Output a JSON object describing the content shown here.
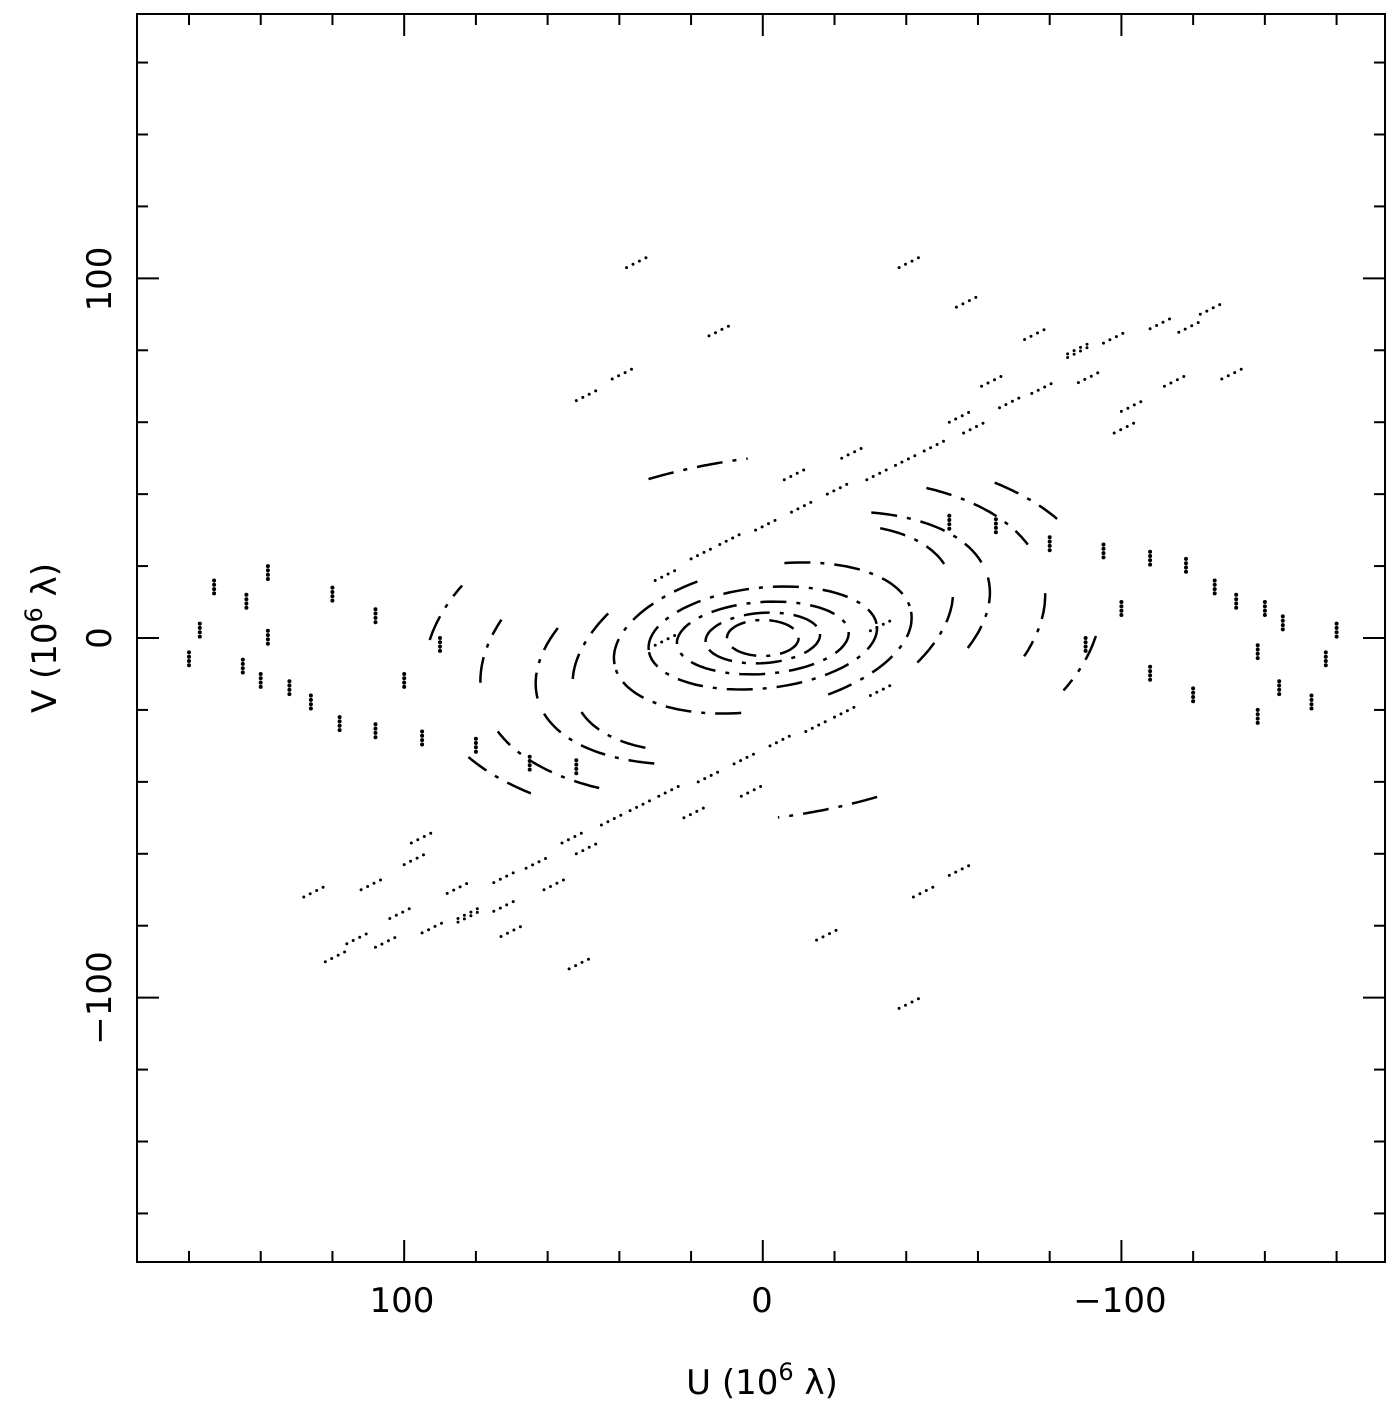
{
  "chart_data": {
    "type": "scatter",
    "title": "",
    "x_axis": {
      "label": {
        "name": "U",
        "exponent": "6",
        "unit": "λ"
      },
      "range": [
        174.5,
        -173.5
      ],
      "reversed": true,
      "major_ticks": [
        100,
        0,
        -100
      ],
      "tick_labels": [
        "100",
        "0",
        "−100"
      ],
      "minor_tick_step": 20
    },
    "y_axis": {
      "label": {
        "name": "V",
        "exponent": "6",
        "unit": "λ"
      },
      "range": [
        -173.5,
        173.5
      ],
      "major_ticks": [
        100,
        0,
        -100
      ],
      "tick_labels": [
        "100",
        "0",
        "−100"
      ],
      "minor_tick_step": 20
    },
    "grid": false,
    "legend": "none",
    "marker_color": "#000000",
    "series": [
      {
        "kind": "ellipse_tracks",
        "center": [
          0,
          0
        ],
        "tracks": [
          {
            "a": 95,
            "b": 50,
            "tilt_deg": -8,
            "arcs": [
              [
                0.25,
                0.55
              ],
              [
                1.3,
                1.6
              ],
              [
                2.4,
                2.7
              ]
            ]
          },
          {
            "a": 80,
            "b": 42,
            "tilt_deg": -12,
            "arcs": [
              [
                0.1,
                0.5
              ],
              [
                2.3,
                2.9
              ]
            ]
          },
          {
            "a": 65,
            "b": 32,
            "tilt_deg": -15,
            "arcs": [
              [
                0.0,
                0.6
              ],
              [
                2.2,
                3.0
              ]
            ]
          },
          {
            "a": 55,
            "b": 28,
            "tilt_deg": -18,
            "arcs": [
              [
                0.2,
                0.8
              ],
              [
                2.4,
                3.0
              ]
            ]
          },
          {
            "a": 42,
            "b": 20,
            "tilt_deg": -10,
            "arcs": [
              [
                0.0,
                1.2
              ],
              [
                1.8,
                3.1
              ]
            ]
          },
          {
            "a": 32,
            "b": 14,
            "tilt_deg": -6,
            "arcs": [
              [
                0.0,
                3.1
              ]
            ]
          },
          {
            "a": 24,
            "b": 10,
            "tilt_deg": -4,
            "arcs": [
              [
                0.0,
                3.1
              ]
            ]
          },
          {
            "a": 16,
            "b": 7,
            "tilt_deg": -4,
            "arcs": [
              [
                0.0,
                3.1
              ]
            ]
          },
          {
            "a": 10,
            "b": 5,
            "tilt_deg": 0,
            "arcs": [
              [
                0.0,
                3.1
              ]
            ]
          }
        ]
      },
      {
        "kind": "streak_clusters",
        "points": [
          [
            -38,
            103
          ],
          [
            -54,
            92
          ],
          [
            -73,
            83
          ],
          [
            -85,
            79
          ],
          [
            -88,
            71
          ],
          [
            -75,
            68
          ],
          [
            -66,
            64
          ],
          [
            -56,
            57
          ],
          [
            -45,
            52
          ],
          [
            -37,
            48
          ],
          [
            -29,
            44
          ],
          [
            -18,
            40
          ],
          [
            -8,
            35
          ],
          [
            2,
            30
          ],
          [
            12,
            26
          ],
          [
            20,
            22
          ],
          [
            30,
            16
          ],
          [
            -61,
            70
          ],
          [
            -52,
            60
          ],
          [
            -100,
            63
          ],
          [
            -112,
            70
          ],
          [
            -128,
            72
          ],
          [
            -98,
            57
          ],
          [
            42,
            72
          ],
          [
            52,
            66
          ],
          [
            15,
            84
          ],
          [
            -22,
            50
          ],
          [
            -6,
            44
          ],
          [
            30,
            -2
          ],
          [
            38,
            103
          ],
          [
            54,
            -92
          ],
          [
            73,
            -83
          ],
          [
            85,
            -79
          ],
          [
            88,
            -71
          ],
          [
            75,
            -68
          ],
          [
            66,
            -64
          ],
          [
            56,
            -57
          ],
          [
            45,
            -52
          ],
          [
            37,
            -48
          ],
          [
            29,
            -44
          ],
          [
            18,
            -40
          ],
          [
            8,
            -35
          ],
          [
            -2,
            -30
          ],
          [
            -12,
            -26
          ],
          [
            -20,
            -22
          ],
          [
            -30,
            -16
          ],
          [
            61,
            -70
          ],
          [
            52,
            -60
          ],
          [
            100,
            -63
          ],
          [
            112,
            -70
          ],
          [
            128,
            -72
          ],
          [
            98,
            -57
          ],
          [
            -42,
            -72
          ],
          [
            -52,
            -66
          ],
          [
            -15,
            -84
          ],
          [
            22,
            -50
          ],
          [
            6,
            -44
          ],
          [
            -30,
            2
          ],
          [
            -38,
            -103
          ],
          [
            122,
            -90
          ],
          [
            116,
            -85
          ],
          [
            108,
            -86
          ],
          [
            95,
            -82
          ],
          [
            85,
            -78
          ],
          [
            75,
            -76
          ],
          [
            104,
            -78
          ],
          [
            -122,
            90
          ],
          [
            -116,
            85
          ],
          [
            -108,
            86
          ],
          [
            -95,
            82
          ],
          [
            -85,
            78
          ]
        ]
      },
      {
        "kind": "outer_arcs",
        "points": [
          [
            160,
            -4
          ],
          [
            157,
            4
          ],
          [
            153,
            16
          ],
          [
            144,
            12
          ],
          [
            145,
            -6
          ],
          [
            140,
            -10
          ],
          [
            138,
            2
          ],
          [
            132,
            -12
          ],
          [
            126,
            -16
          ],
          [
            118,
            -22
          ],
          [
            108,
            -24
          ],
          [
            95,
            -26
          ],
          [
            80,
            -28
          ],
          [
            65,
            -33
          ],
          [
            52,
            -34
          ],
          [
            138,
            20
          ],
          [
            120,
            14
          ],
          [
            108,
            8
          ],
          [
            90,
            0
          ],
          [
            100,
            -10
          ],
          [
            -160,
            4
          ],
          [
            -157,
            -4
          ],
          [
            -153,
            -16
          ],
          [
            -144,
            -12
          ],
          [
            -145,
            6
          ],
          [
            -140,
            10
          ],
          [
            -138,
            -2
          ],
          [
            -132,
            12
          ],
          [
            -126,
            16
          ],
          [
            -118,
            22
          ],
          [
            -108,
            24
          ],
          [
            -95,
            26
          ],
          [
            -80,
            28
          ],
          [
            -65,
            33
          ],
          [
            -52,
            34
          ],
          [
            -138,
            -20
          ],
          [
            -120,
            -14
          ],
          [
            -108,
            -8
          ],
          [
            -90,
            0
          ],
          [
            -100,
            10
          ]
        ]
      }
    ]
  }
}
